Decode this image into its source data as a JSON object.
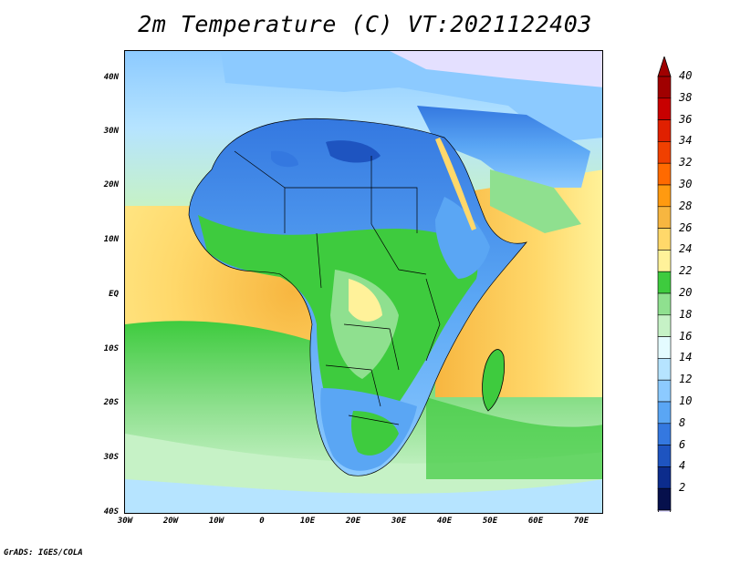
{
  "title": "2m Temperature (C) VT:2021122403",
  "credit": "GrADS: IGES/COLA",
  "map": {
    "lat_labels": [
      "40N",
      "30N",
      "20N",
      "10N",
      "EQ",
      "10S",
      "20S",
      "30S",
      "40S"
    ],
    "lon_labels": [
      "30W",
      "20W",
      "10W",
      "0",
      "10E",
      "20E",
      "30E",
      "40E",
      "50E",
      "60E",
      "70E"
    ]
  },
  "colorbar": {
    "labels": [
      "40",
      "38",
      "36",
      "34",
      "32",
      "30",
      "28",
      "26",
      "24",
      "22",
      "20",
      "18",
      "16",
      "14",
      "12",
      "10",
      "8",
      "6",
      "4",
      "2"
    ],
    "colors": {
      "top_arrow": "#a00000",
      "bottom_arrow": "#e0dcff",
      "bins": [
        "#a00000",
        "#c80000",
        "#e02000",
        "#f04000",
        "#ff6a00",
        "#ff9a10",
        "#f7b640",
        "#ffd86a",
        "#fff29a",
        "#3ecb3e",
        "#8fe08f",
        "#c6f2c6",
        "#e4fbff",
        "#b6e4ff",
        "#8ccaff",
        "#5aa6f4",
        "#3478e0",
        "#1e54c0",
        "#0c2c8c",
        "#06104c"
      ]
    }
  }
}
